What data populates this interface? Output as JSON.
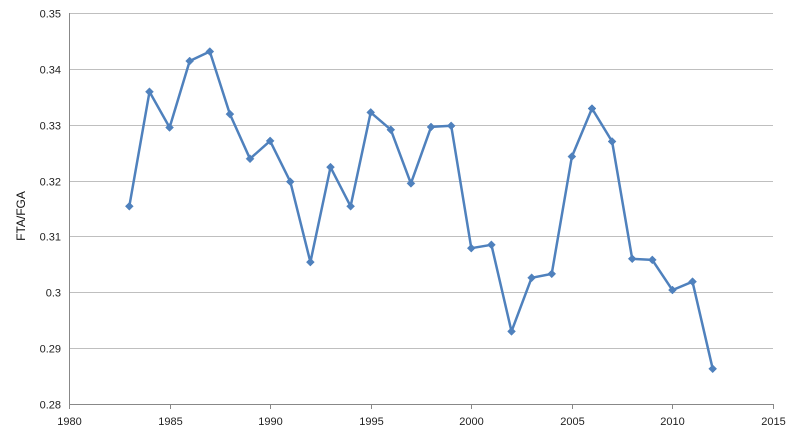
{
  "chart_data": {
    "type": "line",
    "title": "",
    "xlabel": "",
    "ylabel": "FTA/FGA",
    "xlim": [
      1980,
      2015
    ],
    "ylim": [
      0.28,
      0.35
    ],
    "x_ticks": [
      1980,
      1985,
      1990,
      1995,
      2000,
      2005,
      2010,
      2015
    ],
    "y_ticks": [
      0.28,
      0.29,
      0.3,
      0.31,
      0.32,
      0.33,
      0.34,
      0.35
    ],
    "x_tick_labels": [
      "1980",
      "1985",
      "1990",
      "1995",
      "2000",
      "2005",
      "2010",
      "2015"
    ],
    "y_tick_labels": [
      "0.28",
      "0.29",
      "0.3",
      "0.31",
      "0.32",
      "0.33",
      "0.34",
      "0.35"
    ],
    "grid": "horizontal",
    "legend": "none",
    "series": [
      {
        "color": "#4f81bd",
        "marker": "diamond",
        "x": [
          1983,
          1984,
          1985,
          1986,
          1987,
          1988,
          1989,
          1990,
          1991,
          1992,
          1993,
          1994,
          1995,
          1996,
          1997,
          1998,
          1999,
          2000,
          2001,
          2002,
          2003,
          2004,
          2005,
          2006,
          2007,
          2008,
          2009,
          2010,
          2011,
          2012
        ],
        "y": [
          0.3154,
          0.3359,
          0.3295,
          0.3414,
          0.3431,
          0.3319,
          0.3239,
          0.3271,
          0.3198,
          0.3054,
          0.3224,
          0.3154,
          0.3322,
          0.3291,
          0.3195,
          0.3296,
          0.3298,
          0.3079,
          0.3085,
          0.293,
          0.3026,
          0.3033,
          0.3243,
          0.3329,
          0.327,
          0.306,
          0.3058,
          0.3004,
          0.3019,
          0.2863
        ]
      }
    ]
  }
}
